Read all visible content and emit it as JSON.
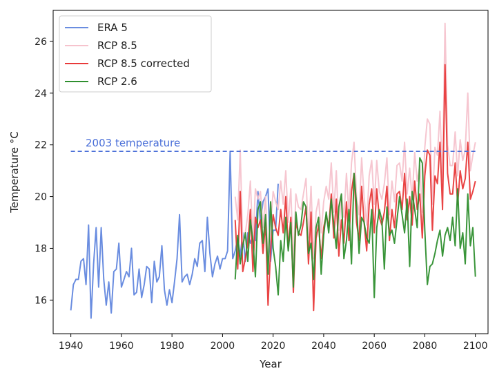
{
  "chart_data": {
    "type": "line",
    "xlabel": "Year",
    "ylabel": "Temperature °C",
    "xlim": [
      1933,
      2105
    ],
    "ylim": [
      14.7,
      27.2
    ],
    "x_ticks": [
      1940,
      1960,
      1980,
      2000,
      2020,
      2040,
      2060,
      2080,
      2100
    ],
    "y_ticks": [
      16,
      18,
      20,
      22,
      24,
      26
    ],
    "grid": false,
    "legend_position": "top-left",
    "annotation": {
      "text": "2003 temperature",
      "y": 21.75,
      "x_start": 1940,
      "x_end": 2100,
      "style": "dashed",
      "color": "#4a6fd8"
    },
    "series": [
      {
        "name": "ERA 5",
        "color": "#6a8de0",
        "x": [
          1940,
          1941,
          1942,
          1943,
          1944,
          1945,
          1946,
          1947,
          1948,
          1949,
          1950,
          1951,
          1952,
          1953,
          1954,
          1955,
          1956,
          1957,
          1958,
          1959,
          1960,
          1961,
          1962,
          1963,
          1964,
          1965,
          1966,
          1967,
          1968,
          1969,
          1970,
          1971,
          1972,
          1973,
          1974,
          1975,
          1976,
          1977,
          1978,
          1979,
          1980,
          1981,
          1982,
          1983,
          1984,
          1985,
          1986,
          1987,
          1988,
          1989,
          1990,
          1991,
          1992,
          1993,
          1994,
          1995,
          1996,
          1997,
          1998,
          1999,
          2000,
          2001,
          2002,
          2003,
          2004,
          2005,
          2006,
          2007,
          2008,
          2009,
          2010,
          2011,
          2012,
          2013,
          2014,
          2015,
          2016,
          2017,
          2018,
          2019,
          2020,
          2021,
          2022
        ],
        "values": [
          15.6,
          16.6,
          16.8,
          16.8,
          17.5,
          17.6,
          16.6,
          18.9,
          15.3,
          17.4,
          18.8,
          16.5,
          18.8,
          16.8,
          15.8,
          16.7,
          15.5,
          17.1,
          17.2,
          18.2,
          16.5,
          16.8,
          17.1,
          16.9,
          18.0,
          16.2,
          16.3,
          17.2,
          16.1,
          16.6,
          17.3,
          17.2,
          15.9,
          17.5,
          16.7,
          16.9,
          18.1,
          16.4,
          15.8,
          16.4,
          15.9,
          16.7,
          17.6,
          19.3,
          16.7,
          16.9,
          17.0,
          16.6,
          17.0,
          17.6,
          17.3,
          18.2,
          18.3,
          17.1,
          19.2,
          17.8,
          16.9,
          17.4,
          17.7,
          17.2,
          17.6,
          17.6,
          17.9,
          21.75,
          17.6,
          17.9,
          18.4,
          17.7,
          18.6,
          17.5,
          18.6,
          18.2,
          18.5,
          18.3,
          20.2,
          19.0,
          19.8,
          20.0,
          20.3,
          17.5,
          18.7,
          18.7,
          20.5
        ]
      },
      {
        "name": "RCP 8.5",
        "color": "#f6c3cd",
        "x": [
          2005,
          2006,
          2007,
          2008,
          2009,
          2010,
          2011,
          2012,
          2013,
          2014,
          2015,
          2016,
          2017,
          2018,
          2019,
          2020,
          2021,
          2022,
          2023,
          2024,
          2025,
          2026,
          2027,
          2028,
          2029,
          2030,
          2031,
          2032,
          2033,
          2034,
          2035,
          2036,
          2037,
          2038,
          2039,
          2040,
          2041,
          2042,
          2043,
          2044,
          2045,
          2046,
          2047,
          2048,
          2049,
          2050,
          2051,
          2052,
          2053,
          2054,
          2055,
          2056,
          2057,
          2058,
          2059,
          2060,
          2061,
          2062,
          2063,
          2064,
          2065,
          2066,
          2067,
          2068,
          2069,
          2070,
          2071,
          2072,
          2073,
          2074,
          2075,
          2076,
          2077,
          2078,
          2079,
          2080,
          2081,
          2082,
          2083,
          2084,
          2085,
          2086,
          2087,
          2088,
          2089,
          2090,
          2091,
          2092,
          2093,
          2094,
          2095,
          2096,
          2097,
          2098,
          2099,
          2100
        ],
        "values": [
          20.0,
          19.1,
          21.8,
          18.1,
          18.6,
          19.3,
          20.6,
          18.2,
          20.3,
          19.9,
          20.2,
          18.8,
          20.0,
          17.4,
          18.9,
          20.2,
          19.8,
          19.5,
          20.6,
          19.7,
          21.0,
          19.0,
          20.3,
          17.3,
          20.1,
          19.6,
          19.5,
          20.1,
          20.7,
          18.4,
          20.4,
          17.6,
          19.4,
          19.9,
          18.6,
          19.8,
          20.4,
          19.9,
          21.3,
          19.4,
          21.0,
          18.7,
          20.1,
          19.2,
          20.9,
          19.3,
          21.3,
          22.1,
          20.0,
          19.3,
          21.5,
          20.0,
          18.9,
          20.8,
          21.4,
          19.7,
          21.4,
          20.2,
          19.9,
          20.5,
          21.5,
          19.3,
          20.6,
          19.8,
          21.2,
          21.3,
          20.6,
          22.1,
          20.1,
          21.1,
          19.9,
          21.7,
          20.6,
          21.2,
          19.4,
          21.9,
          23.0,
          22.8,
          19.7,
          21.9,
          21.6,
          23.3,
          20.6,
          26.7,
          22.0,
          21.2,
          21.2,
          22.5,
          20.8,
          22.2,
          21.4,
          21.8,
          24.0,
          21.0,
          21.6,
          22.1
        ]
      },
      {
        "name": "RCP 8.5 corrected",
        "color": "#e83a3a",
        "x": [
          2005,
          2006,
          2007,
          2008,
          2009,
          2010,
          2011,
          2012,
          2013,
          2014,
          2015,
          2016,
          2017,
          2018,
          2019,
          2020,
          2021,
          2022,
          2023,
          2024,
          2025,
          2026,
          2027,
          2028,
          2029,
          2030,
          2031,
          2032,
          2033,
          2034,
          2035,
          2036,
          2037,
          2038,
          2039,
          2040,
          2041,
          2042,
          2043,
          2044,
          2045,
          2046,
          2047,
          2048,
          2049,
          2050,
          2051,
          2052,
          2053,
          2054,
          2055,
          2056,
          2057,
          2058,
          2059,
          2060,
          2061,
          2062,
          2063,
          2064,
          2065,
          2066,
          2067,
          2068,
          2069,
          2070,
          2071,
          2072,
          2073,
          2074,
          2075,
          2076,
          2077,
          2078,
          2079,
          2080,
          2081,
          2082,
          2083,
          2084,
          2085,
          2086,
          2087,
          2088,
          2089,
          2090,
          2091,
          2092,
          2093,
          2094,
          2095,
          2096,
          2097,
          2098,
          2099,
          2100
        ],
        "values": [
          19.1,
          17.2,
          20.2,
          17.1,
          17.6,
          18.2,
          19.5,
          17.1,
          19.2,
          18.8,
          19.1,
          17.8,
          19.0,
          15.8,
          17.9,
          19.3,
          18.8,
          18.5,
          19.5,
          18.6,
          20.0,
          18.0,
          19.2,
          16.3,
          19.0,
          18.6,
          18.5,
          19.0,
          19.6,
          17.4,
          19.4,
          15.6,
          18.4,
          18.9,
          17.6,
          18.8,
          19.3,
          18.8,
          20.1,
          18.4,
          19.9,
          17.7,
          19.1,
          18.2,
          19.8,
          18.3,
          20.2,
          20.9,
          19.0,
          18.3,
          20.4,
          19.0,
          17.9,
          19.7,
          20.3,
          18.6,
          20.3,
          19.2,
          18.9,
          19.4,
          20.4,
          18.3,
          19.5,
          18.8,
          20.1,
          20.2,
          19.5,
          20.9,
          19.1,
          20.0,
          18.9,
          20.6,
          19.5,
          20.1,
          18.4,
          20.8,
          21.8,
          21.6,
          18.7,
          20.8,
          20.5,
          22.1,
          19.5,
          25.1,
          20.9,
          20.1,
          20.1,
          21.3,
          19.7,
          21.0,
          20.3,
          20.7,
          22.1,
          19.9,
          20.2,
          20.6
        ]
      },
      {
        "name": "RCP 2.6",
        "color": "#2f8f2f",
        "x": [
          2005,
          2006,
          2007,
          2008,
          2009,
          2010,
          2011,
          2012,
          2013,
          2014,
          2015,
          2016,
          2017,
          2018,
          2019,
          2020,
          2021,
          2022,
          2023,
          2024,
          2025,
          2026,
          2027,
          2028,
          2029,
          2030,
          2031,
          2032,
          2033,
          2034,
          2035,
          2036,
          2037,
          2038,
          2039,
          2040,
          2041,
          2042,
          2043,
          2044,
          2045,
          2046,
          2047,
          2048,
          2049,
          2050,
          2051,
          2052,
          2053,
          2054,
          2055,
          2056,
          2057,
          2058,
          2059,
          2060,
          2061,
          2062,
          2063,
          2064,
          2065,
          2066,
          2067,
          2068,
          2069,
          2070,
          2071,
          2072,
          2073,
          2074,
          2075,
          2076,
          2077,
          2078,
          2079,
          2080,
          2081,
          2082,
          2083,
          2084,
          2085,
          2086,
          2087,
          2088,
          2089,
          2090,
          2091,
          2092,
          2093,
          2094,
          2095,
          2096,
          2097,
          2098,
          2099,
          2100
        ],
        "values": [
          16.8,
          18.5,
          17.4,
          18.1,
          18.6,
          17.5,
          19.1,
          18.3,
          16.9,
          19.5,
          19.8,
          18.2,
          19.3,
          17.0,
          19.8,
          18.0,
          17.3,
          16.2,
          18.3,
          17.5,
          19.2,
          17.9,
          19.0,
          16.5,
          19.4,
          18.5,
          18.9,
          19.8,
          19.6,
          17.8,
          18.2,
          16.8,
          18.8,
          19.2,
          17.0,
          18.5,
          19.4,
          18.6,
          19.9,
          18.9,
          18.0,
          19.6,
          20.1,
          17.6,
          18.3,
          19.5,
          17.4,
          20.9,
          19.7,
          17.8,
          19.2,
          19.0,
          18.4,
          18.2,
          19.5,
          16.1,
          18.8,
          19.5,
          19.1,
          17.2,
          19.6,
          18.5,
          18.7,
          18.2,
          19.1,
          20.0,
          19.3,
          18.6,
          19.9,
          17.3,
          20.2,
          19.5,
          18.8,
          21.5,
          21.3,
          18.7,
          16.6,
          17.3,
          17.4,
          17.8,
          18.3,
          18.7,
          17.7,
          18.5,
          18.8,
          18.3,
          19.2,
          18.1,
          20.3,
          18.0,
          18.6,
          17.4,
          20.1,
          18.1,
          18.8,
          16.9
        ]
      }
    ]
  }
}
